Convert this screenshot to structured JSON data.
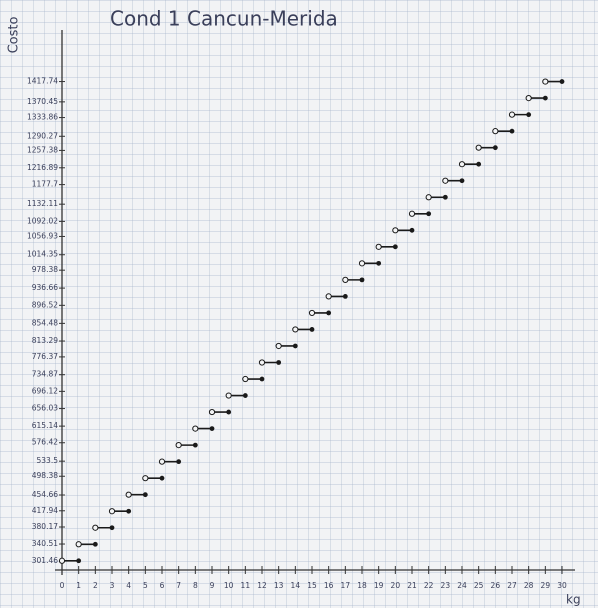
{
  "chart_data": {
    "type": "step",
    "title": "Cond 1 Cancun-Merida",
    "y_label": "Costo",
    "x_label": "kg",
    "x": [
      0,
      1,
      2,
      3,
      4,
      5,
      6,
      7,
      8,
      9,
      10,
      11,
      12,
      13,
      14,
      15,
      16,
      17,
      18,
      19,
      20,
      21,
      22,
      23,
      24,
      25,
      26,
      27,
      28,
      29
    ],
    "values": [
      301.46,
      339.95,
      378.44,
      416.93,
      455.42,
      493.91,
      532.4,
      570.89,
      609.38,
      647.87,
      686.36,
      724.85,
      763.34,
      801.83,
      840.32,
      878.81,
      917.3,
      955.79,
      994.28,
      1032.77,
      1071.26,
      1109.75,
      1148.24,
      1186.73,
      1225.22,
      1263.71,
      1302.2,
      1340.69,
      1379.18,
      1417.67
    ],
    "color": "#1a1a1a",
    "xlim": [
      0,
      30
    ],
    "xticks": [
      0,
      1,
      2,
      3,
      4,
      5,
      6,
      7,
      8,
      9,
      10,
      11,
      12,
      13,
      14,
      15,
      16,
      17,
      18,
      19,
      20,
      21,
      22,
      23,
      24,
      25,
      26,
      27,
      28,
      29,
      30
    ],
    "ylim": [
      280,
      1440
    ],
    "yticks": [
      301.46,
      340.51,
      380.17,
      417.94,
      454.66,
      498.38,
      533.5,
      576.42,
      615.14,
      656.03,
      696.12,
      734.87,
      776.37,
      813.29,
      854.48,
      896.52,
      936.66,
      978.38,
      1014.35,
      1056.93,
      1092.02,
      1132.11,
      1177.7,
      1216.89,
      1257.38,
      1290.27,
      1333.86,
      1370.45,
      1417.74
    ]
  }
}
